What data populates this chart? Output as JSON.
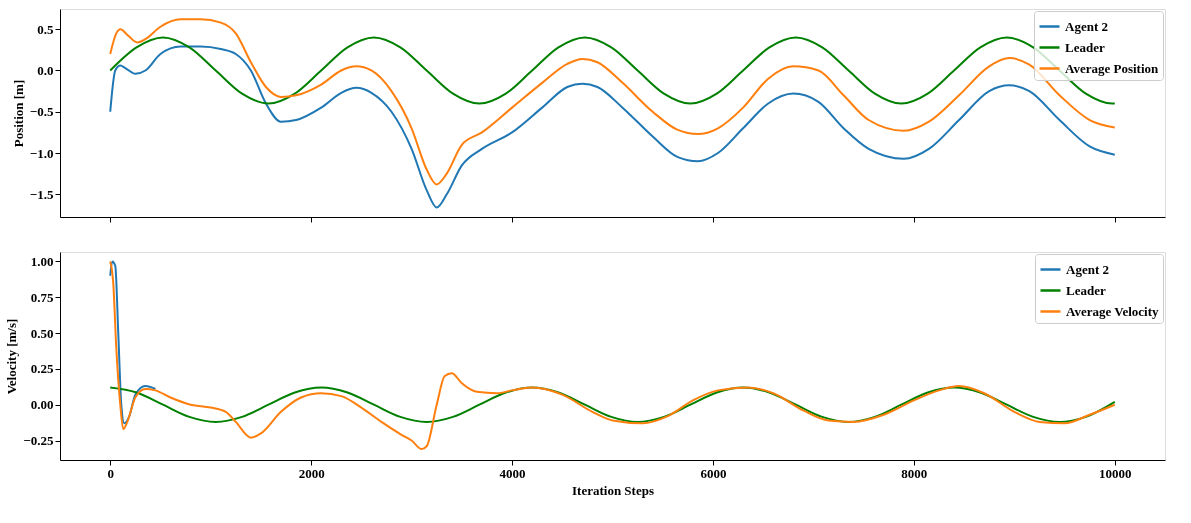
{
  "chart_data": [
    {
      "type": "line",
      "ylabel": "Position   [m]",
      "xlim": [
        -500,
        10500
      ],
      "ylim": [
        -1.775,
        0.745
      ],
      "xticks": [
        0,
        2000,
        4000,
        6000,
        8000,
        10000
      ],
      "yticks": [
        {
          "value": -1.5,
          "label": "−1.5"
        },
        {
          "value": -1.0,
          "label": "−1.0"
        },
        {
          "value": -0.5,
          "label": "−0.5"
        },
        {
          "value": 0.0,
          "label": "0.0"
        },
        {
          "value": 0.5,
          "label": "0.5"
        }
      ],
      "tick_labels": "y",
      "grid": false,
      "legend": "top right",
      "series": [
        {
          "name": "Agent 2",
          "color": "#1f77b4",
          "x": [
            0,
            50,
            100,
            150,
            250,
            350,
            500,
            700,
            900,
            1100,
            1250,
            1400,
            1550,
            1700,
            1850,
            2100,
            2300,
            2450,
            2600,
            2800,
            3000,
            3150,
            3250,
            3350,
            3500,
            3700,
            4000,
            4300,
            4550,
            4700,
            4850,
            5100,
            5400,
            5650,
            5850,
            6050,
            6300,
            6550,
            6800,
            7050,
            7300,
            7550,
            7900,
            8150,
            8450,
            8750,
            8950,
            9150,
            9450,
            9750,
            10000
          ],
          "values": [
            -0.5,
            0.0,
            0.06,
            0.03,
            -0.04,
            0.0,
            0.2,
            0.29,
            0.29,
            0.26,
            0.2,
            0.0,
            -0.4,
            -0.62,
            -0.6,
            -0.45,
            -0.27,
            -0.21,
            -0.27,
            -0.5,
            -0.95,
            -1.45,
            -1.66,
            -1.5,
            -1.15,
            -0.95,
            -0.75,
            -0.45,
            -0.2,
            -0.16,
            -0.2,
            -0.45,
            -0.8,
            -1.05,
            -1.1,
            -1.0,
            -0.7,
            -0.4,
            -0.28,
            -0.38,
            -0.7,
            -0.95,
            -1.07,
            -0.95,
            -0.6,
            -0.25,
            -0.18,
            -0.25,
            -0.6,
            -0.92,
            -1.02
          ]
        },
        {
          "name": "Leader",
          "color": "#008000",
          "x": [
            0,
            262,
            525,
            788,
            1050,
            1312,
            1575,
            1838,
            2100,
            2362,
            2625,
            2888,
            3150,
            3412,
            3675,
            3938,
            4200,
            4462,
            4725,
            4988,
            5250,
            5512,
            5775,
            6038,
            6300,
            6562,
            6825,
            7088,
            7350,
            7612,
            7875,
            8138,
            8400,
            8662,
            8925,
            9188,
            9450,
            9712,
            9975,
            10000
          ],
          "values": [
            0.0,
            0.28,
            0.4,
            0.28,
            0.0,
            -0.28,
            -0.4,
            -0.28,
            0.0,
            0.28,
            0.4,
            0.28,
            0.0,
            -0.28,
            -0.4,
            -0.28,
            0.0,
            0.28,
            0.4,
            0.28,
            0.0,
            -0.28,
            -0.4,
            -0.28,
            0.0,
            0.28,
            0.4,
            0.28,
            0.0,
            -0.28,
            -0.4,
            -0.28,
            0.0,
            0.28,
            0.4,
            0.28,
            0.0,
            -0.28,
            -0.4,
            -0.4
          ]
        },
        {
          "name": "Average Position",
          "color": "#ff7f0e",
          "x": [
            0,
            60,
            100,
            180,
            270,
            350,
            500,
            700,
            900,
            1100,
            1250,
            1400,
            1550,
            1700,
            1850,
            2100,
            2300,
            2450,
            2600,
            2800,
            3000,
            3150,
            3250,
            3350,
            3500,
            3700,
            4000,
            4300,
            4550,
            4700,
            4850,
            5100,
            5400,
            5650,
            5850,
            6050,
            6300,
            6550,
            6800,
            7050,
            7300,
            7550,
            7900,
            8150,
            8450,
            8750,
            8950,
            9150,
            9450,
            9750,
            10000
          ],
          "values": [
            0.2,
            0.45,
            0.5,
            0.42,
            0.34,
            0.38,
            0.53,
            0.62,
            0.62,
            0.58,
            0.45,
            0.1,
            -0.2,
            -0.32,
            -0.3,
            -0.17,
            0.0,
            0.05,
            0.0,
            -0.25,
            -0.7,
            -1.2,
            -1.38,
            -1.25,
            -0.9,
            -0.75,
            -0.45,
            -0.15,
            0.08,
            0.14,
            0.1,
            -0.15,
            -0.5,
            -0.72,
            -0.77,
            -0.7,
            -0.45,
            -0.1,
            0.05,
            0.0,
            -0.3,
            -0.6,
            -0.73,
            -0.62,
            -0.3,
            0.05,
            0.15,
            0.07,
            -0.3,
            -0.6,
            -0.69
          ]
        }
      ]
    },
    {
      "type": "line",
      "xlabel": "Iteration Steps",
      "ylabel": "Velocity   [m/s]",
      "xlim": [
        -500,
        10500
      ],
      "ylim": [
        -0.386,
        1.066
      ],
      "xticks": [
        0,
        2000,
        4000,
        6000,
        8000,
        10000
      ],
      "yticks": [
        {
          "value": -0.25,
          "label": "−0.25"
        },
        {
          "value": 0.0,
          "label": "0.00"
        },
        {
          "value": 0.25,
          "label": "0.25"
        },
        {
          "value": 0.5,
          "label": "0.50"
        },
        {
          "value": 0.75,
          "label": "0.75"
        },
        {
          "value": 1.0,
          "label": "1.00"
        }
      ],
      "grid": false,
      "legend": "top right",
      "series": [
        {
          "name": "Agent 2",
          "color": "#1f77b4",
          "x": [
            0,
            20,
            50,
            80,
            110,
            140,
            190,
            250,
            350,
            450
          ],
          "values": [
            0.9,
            1.0,
            0.97,
            0.5,
            0.0,
            -0.13,
            -0.08,
            0.07,
            0.13,
            0.11
          ]
        },
        {
          "name": "Leader",
          "color": "#008000",
          "x": [
            0,
            262,
            525,
            788,
            1050,
            1312,
            1575,
            1838,
            2100,
            2362,
            2625,
            2888,
            3150,
            3412,
            3675,
            3938,
            4200,
            4462,
            4725,
            4988,
            5250,
            5512,
            5775,
            6038,
            6300,
            6562,
            6825,
            7088,
            7350,
            7612,
            7875,
            8138,
            8400,
            8662,
            8925,
            9188,
            9450,
            9712,
            10000
          ],
          "values": [
            0.12,
            0.085,
            0.0,
            -0.085,
            -0.12,
            -0.085,
            0.0,
            0.085,
            0.12,
            0.085,
            0.0,
            -0.085,
            -0.12,
            -0.085,
            0.0,
            0.085,
            0.12,
            0.085,
            0.0,
            -0.085,
            -0.12,
            -0.085,
            0.0,
            0.085,
            0.12,
            0.085,
            0.0,
            -0.085,
            -0.12,
            -0.085,
            0.0,
            0.085,
            0.12,
            0.085,
            0.0,
            -0.085,
            -0.12,
            -0.085,
            0.02
          ]
        },
        {
          "name": "Average Velocity",
          "color": "#ff7f0e",
          "x": [
            0,
            30,
            60,
            100,
            130,
            170,
            250,
            350,
            450,
            600,
            800,
            1000,
            1150,
            1250,
            1400,
            1500,
            1700,
            1900,
            2100,
            2300,
            2500,
            2700,
            2900,
            3000,
            3100,
            3150,
            3250,
            3330,
            3400,
            3500,
            3650,
            3850,
            4000,
            4200,
            4500,
            4800,
            5000,
            5300,
            5550,
            5800,
            6050,
            6350,
            6600,
            6900,
            7150,
            7400,
            7700,
            8000,
            8250,
            8450,
            8700,
            9000,
            9250,
            9500,
            9750,
            10000
          ],
          "values": [
            1.0,
            0.85,
            0.4,
            0.0,
            -0.17,
            -0.12,
            0.05,
            0.11,
            0.1,
            0.05,
            0.0,
            -0.02,
            -0.05,
            -0.12,
            -0.23,
            -0.2,
            -0.05,
            0.05,
            0.08,
            0.06,
            -0.02,
            -0.12,
            -0.21,
            -0.25,
            -0.31,
            -0.29,
            0.0,
            0.2,
            0.22,
            0.15,
            0.09,
            0.08,
            0.1,
            0.12,
            0.07,
            -0.05,
            -0.11,
            -0.13,
            -0.08,
            0.03,
            0.1,
            0.12,
            0.08,
            -0.04,
            -0.11,
            -0.12,
            -0.07,
            0.03,
            0.1,
            0.13,
            0.08,
            -0.05,
            -0.12,
            -0.13,
            -0.07,
            0.0
          ]
        }
      ]
    }
  ]
}
